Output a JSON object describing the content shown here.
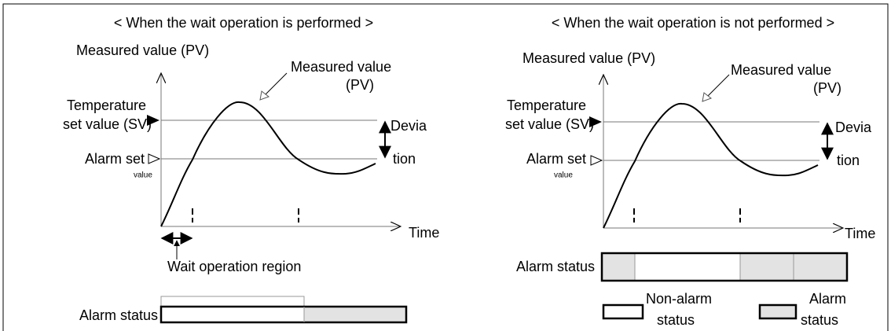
{
  "left_panel": {
    "title": "< When the wait operation is performed >",
    "y_axis_label": "Measured value (PV)",
    "curve_label": [
      "Measured value",
      "(PV)"
    ],
    "sv_label": [
      "Temperature",
      "set value (SV)"
    ],
    "deviation_label": [
      "Devia",
      "tion"
    ],
    "alarm_label": [
      "Alarm set",
      "value"
    ],
    "x_axis_label": "Time",
    "wait_label": "Wait operation region",
    "alarm_status_label": "Alarm status"
  },
  "right_panel": {
    "title": "< When the wait operation is not performed >",
    "y_axis_label": "Measured value (PV)",
    "curve_label": [
      "Measured value",
      "(PV)"
    ],
    "sv_label": [
      "Temperature",
      "set value (SV)"
    ],
    "deviation_label": [
      "Devia",
      "tion"
    ],
    "alarm_label": [
      "Alarm set",
      "value"
    ],
    "x_axis_label": "Time",
    "alarm_status_label": "Alarm status",
    "legend": [
      {
        "label": [
          "Non-alarm",
          "status"
        ]
      },
      {
        "label": [
          "Alarm",
          "status"
        ]
      }
    ]
  }
}
